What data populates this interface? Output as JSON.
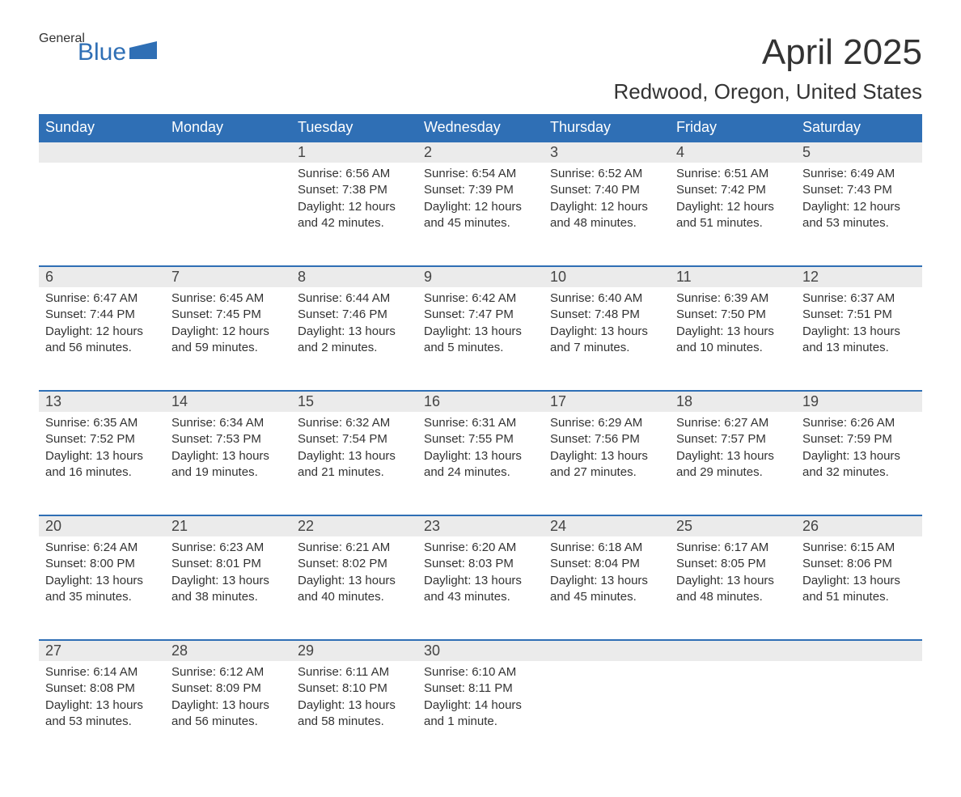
{
  "logo": {
    "general": "General",
    "blue": "Blue"
  },
  "title": {
    "month": "April 2025",
    "location": "Redwood, Oregon, United States"
  },
  "colors": {
    "header_bg": "#2f6fb5",
    "header_text": "#ffffff",
    "daynum_bg": "#ebebeb",
    "border_top": "#2f6fb5",
    "text": "#333333",
    "background": "#ffffff"
  },
  "weekdays": [
    "Sunday",
    "Monday",
    "Tuesday",
    "Wednesday",
    "Thursday",
    "Friday",
    "Saturday"
  ],
  "weeks": [
    [
      null,
      null,
      {
        "n": "1",
        "sunrise": "6:56 AM",
        "sunset": "7:38 PM",
        "daylight": "12 hours and 42 minutes."
      },
      {
        "n": "2",
        "sunrise": "6:54 AM",
        "sunset": "7:39 PM",
        "daylight": "12 hours and 45 minutes."
      },
      {
        "n": "3",
        "sunrise": "6:52 AM",
        "sunset": "7:40 PM",
        "daylight": "12 hours and 48 minutes."
      },
      {
        "n": "4",
        "sunrise": "6:51 AM",
        "sunset": "7:42 PM",
        "daylight": "12 hours and 51 minutes."
      },
      {
        "n": "5",
        "sunrise": "6:49 AM",
        "sunset": "7:43 PM",
        "daylight": "12 hours and 53 minutes."
      }
    ],
    [
      {
        "n": "6",
        "sunrise": "6:47 AM",
        "sunset": "7:44 PM",
        "daylight": "12 hours and 56 minutes."
      },
      {
        "n": "7",
        "sunrise": "6:45 AM",
        "sunset": "7:45 PM",
        "daylight": "12 hours and 59 minutes."
      },
      {
        "n": "8",
        "sunrise": "6:44 AM",
        "sunset": "7:46 PM",
        "daylight": "13 hours and 2 minutes."
      },
      {
        "n": "9",
        "sunrise": "6:42 AM",
        "sunset": "7:47 PM",
        "daylight": "13 hours and 5 minutes."
      },
      {
        "n": "10",
        "sunrise": "6:40 AM",
        "sunset": "7:48 PM",
        "daylight": "13 hours and 7 minutes."
      },
      {
        "n": "11",
        "sunrise": "6:39 AM",
        "sunset": "7:50 PM",
        "daylight": "13 hours and 10 minutes."
      },
      {
        "n": "12",
        "sunrise": "6:37 AM",
        "sunset": "7:51 PM",
        "daylight": "13 hours and 13 minutes."
      }
    ],
    [
      {
        "n": "13",
        "sunrise": "6:35 AM",
        "sunset": "7:52 PM",
        "daylight": "13 hours and 16 minutes."
      },
      {
        "n": "14",
        "sunrise": "6:34 AM",
        "sunset": "7:53 PM",
        "daylight": "13 hours and 19 minutes."
      },
      {
        "n": "15",
        "sunrise": "6:32 AM",
        "sunset": "7:54 PM",
        "daylight": "13 hours and 21 minutes."
      },
      {
        "n": "16",
        "sunrise": "6:31 AM",
        "sunset": "7:55 PM",
        "daylight": "13 hours and 24 minutes."
      },
      {
        "n": "17",
        "sunrise": "6:29 AM",
        "sunset": "7:56 PM",
        "daylight": "13 hours and 27 minutes."
      },
      {
        "n": "18",
        "sunrise": "6:27 AM",
        "sunset": "7:57 PM",
        "daylight": "13 hours and 29 minutes."
      },
      {
        "n": "19",
        "sunrise": "6:26 AM",
        "sunset": "7:59 PM",
        "daylight": "13 hours and 32 minutes."
      }
    ],
    [
      {
        "n": "20",
        "sunrise": "6:24 AM",
        "sunset": "8:00 PM",
        "daylight": "13 hours and 35 minutes."
      },
      {
        "n": "21",
        "sunrise": "6:23 AM",
        "sunset": "8:01 PM",
        "daylight": "13 hours and 38 minutes."
      },
      {
        "n": "22",
        "sunrise": "6:21 AM",
        "sunset": "8:02 PM",
        "daylight": "13 hours and 40 minutes."
      },
      {
        "n": "23",
        "sunrise": "6:20 AM",
        "sunset": "8:03 PM",
        "daylight": "13 hours and 43 minutes."
      },
      {
        "n": "24",
        "sunrise": "6:18 AM",
        "sunset": "8:04 PM",
        "daylight": "13 hours and 45 minutes."
      },
      {
        "n": "25",
        "sunrise": "6:17 AM",
        "sunset": "8:05 PM",
        "daylight": "13 hours and 48 minutes."
      },
      {
        "n": "26",
        "sunrise": "6:15 AM",
        "sunset": "8:06 PM",
        "daylight": "13 hours and 51 minutes."
      }
    ],
    [
      {
        "n": "27",
        "sunrise": "6:14 AM",
        "sunset": "8:08 PM",
        "daylight": "13 hours and 53 minutes."
      },
      {
        "n": "28",
        "sunrise": "6:12 AM",
        "sunset": "8:09 PM",
        "daylight": "13 hours and 56 minutes."
      },
      {
        "n": "29",
        "sunrise": "6:11 AM",
        "sunset": "8:10 PM",
        "daylight": "13 hours and 58 minutes."
      },
      {
        "n": "30",
        "sunrise": "6:10 AM",
        "sunset": "8:11 PM",
        "daylight": "14 hours and 1 minute."
      },
      null,
      null,
      null
    ]
  ],
  "labels": {
    "sunrise": "Sunrise:",
    "sunset": "Sunset:",
    "daylight": "Daylight:"
  }
}
